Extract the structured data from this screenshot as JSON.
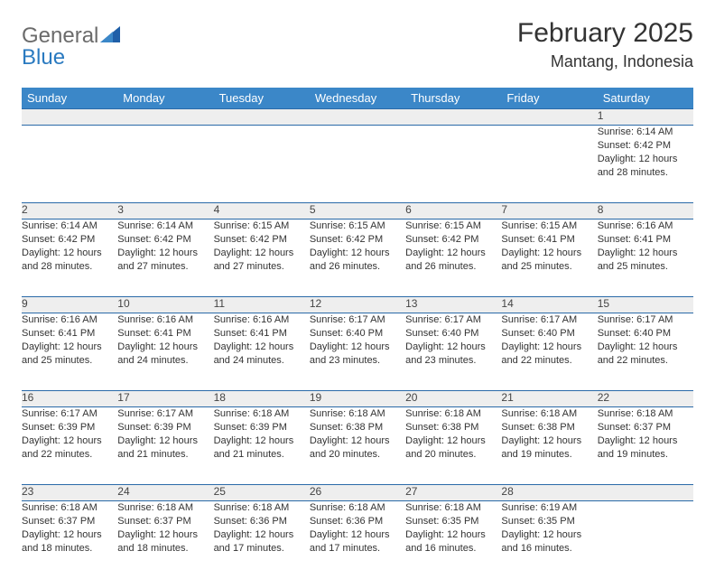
{
  "brand": {
    "text1": "General",
    "text2": "Blue"
  },
  "title": "February 2025",
  "location": "Mantang, Indonesia",
  "colors": {
    "header_bg": "#3b87c8",
    "header_text": "#ffffff",
    "row_border": "#2a6aa8",
    "daynum_bg": "#eeeeee",
    "text": "#333333",
    "logo_gray": "#6b6b6b",
    "logo_blue": "#2a7ac0",
    "page_bg": "#ffffff"
  },
  "typography": {
    "title_fontsize": 30,
    "location_fontsize": 18,
    "header_fontsize": 13,
    "daynum_fontsize": 12,
    "cell_fontsize": 11
  },
  "daysOfWeek": [
    "Sunday",
    "Monday",
    "Tuesday",
    "Wednesday",
    "Thursday",
    "Friday",
    "Saturday"
  ],
  "weeks": [
    [
      {
        "num": "",
        "sunrise": "",
        "sunset": "",
        "daylight": ""
      },
      {
        "num": "",
        "sunrise": "",
        "sunset": "",
        "daylight": ""
      },
      {
        "num": "",
        "sunrise": "",
        "sunset": "",
        "daylight": ""
      },
      {
        "num": "",
        "sunrise": "",
        "sunset": "",
        "daylight": ""
      },
      {
        "num": "",
        "sunrise": "",
        "sunset": "",
        "daylight": ""
      },
      {
        "num": "",
        "sunrise": "",
        "sunset": "",
        "daylight": ""
      },
      {
        "num": "1",
        "sunrise": "Sunrise: 6:14 AM",
        "sunset": "Sunset: 6:42 PM",
        "daylight": "Daylight: 12 hours and 28 minutes."
      }
    ],
    [
      {
        "num": "2",
        "sunrise": "Sunrise: 6:14 AM",
        "sunset": "Sunset: 6:42 PM",
        "daylight": "Daylight: 12 hours and 28 minutes."
      },
      {
        "num": "3",
        "sunrise": "Sunrise: 6:14 AM",
        "sunset": "Sunset: 6:42 PM",
        "daylight": "Daylight: 12 hours and 27 minutes."
      },
      {
        "num": "4",
        "sunrise": "Sunrise: 6:15 AM",
        "sunset": "Sunset: 6:42 PM",
        "daylight": "Daylight: 12 hours and 27 minutes."
      },
      {
        "num": "5",
        "sunrise": "Sunrise: 6:15 AM",
        "sunset": "Sunset: 6:42 PM",
        "daylight": "Daylight: 12 hours and 26 minutes."
      },
      {
        "num": "6",
        "sunrise": "Sunrise: 6:15 AM",
        "sunset": "Sunset: 6:42 PM",
        "daylight": "Daylight: 12 hours and 26 minutes."
      },
      {
        "num": "7",
        "sunrise": "Sunrise: 6:15 AM",
        "sunset": "Sunset: 6:41 PM",
        "daylight": "Daylight: 12 hours and 25 minutes."
      },
      {
        "num": "8",
        "sunrise": "Sunrise: 6:16 AM",
        "sunset": "Sunset: 6:41 PM",
        "daylight": "Daylight: 12 hours and 25 minutes."
      }
    ],
    [
      {
        "num": "9",
        "sunrise": "Sunrise: 6:16 AM",
        "sunset": "Sunset: 6:41 PM",
        "daylight": "Daylight: 12 hours and 25 minutes."
      },
      {
        "num": "10",
        "sunrise": "Sunrise: 6:16 AM",
        "sunset": "Sunset: 6:41 PM",
        "daylight": "Daylight: 12 hours and 24 minutes."
      },
      {
        "num": "11",
        "sunrise": "Sunrise: 6:16 AM",
        "sunset": "Sunset: 6:41 PM",
        "daylight": "Daylight: 12 hours and 24 minutes."
      },
      {
        "num": "12",
        "sunrise": "Sunrise: 6:17 AM",
        "sunset": "Sunset: 6:40 PM",
        "daylight": "Daylight: 12 hours and 23 minutes."
      },
      {
        "num": "13",
        "sunrise": "Sunrise: 6:17 AM",
        "sunset": "Sunset: 6:40 PM",
        "daylight": "Daylight: 12 hours and 23 minutes."
      },
      {
        "num": "14",
        "sunrise": "Sunrise: 6:17 AM",
        "sunset": "Sunset: 6:40 PM",
        "daylight": "Daylight: 12 hours and 22 minutes."
      },
      {
        "num": "15",
        "sunrise": "Sunrise: 6:17 AM",
        "sunset": "Sunset: 6:40 PM",
        "daylight": "Daylight: 12 hours and 22 minutes."
      }
    ],
    [
      {
        "num": "16",
        "sunrise": "Sunrise: 6:17 AM",
        "sunset": "Sunset: 6:39 PM",
        "daylight": "Daylight: 12 hours and 22 minutes."
      },
      {
        "num": "17",
        "sunrise": "Sunrise: 6:17 AM",
        "sunset": "Sunset: 6:39 PM",
        "daylight": "Daylight: 12 hours and 21 minutes."
      },
      {
        "num": "18",
        "sunrise": "Sunrise: 6:18 AM",
        "sunset": "Sunset: 6:39 PM",
        "daylight": "Daylight: 12 hours and 21 minutes."
      },
      {
        "num": "19",
        "sunrise": "Sunrise: 6:18 AM",
        "sunset": "Sunset: 6:38 PM",
        "daylight": "Daylight: 12 hours and 20 minutes."
      },
      {
        "num": "20",
        "sunrise": "Sunrise: 6:18 AM",
        "sunset": "Sunset: 6:38 PM",
        "daylight": "Daylight: 12 hours and 20 minutes."
      },
      {
        "num": "21",
        "sunrise": "Sunrise: 6:18 AM",
        "sunset": "Sunset: 6:38 PM",
        "daylight": "Daylight: 12 hours and 19 minutes."
      },
      {
        "num": "22",
        "sunrise": "Sunrise: 6:18 AM",
        "sunset": "Sunset: 6:37 PM",
        "daylight": "Daylight: 12 hours and 19 minutes."
      }
    ],
    [
      {
        "num": "23",
        "sunrise": "Sunrise: 6:18 AM",
        "sunset": "Sunset: 6:37 PM",
        "daylight": "Daylight: 12 hours and 18 minutes."
      },
      {
        "num": "24",
        "sunrise": "Sunrise: 6:18 AM",
        "sunset": "Sunset: 6:37 PM",
        "daylight": "Daylight: 12 hours and 18 minutes."
      },
      {
        "num": "25",
        "sunrise": "Sunrise: 6:18 AM",
        "sunset": "Sunset: 6:36 PM",
        "daylight": "Daylight: 12 hours and 17 minutes."
      },
      {
        "num": "26",
        "sunrise": "Sunrise: 6:18 AM",
        "sunset": "Sunset: 6:36 PM",
        "daylight": "Daylight: 12 hours and 17 minutes."
      },
      {
        "num": "27",
        "sunrise": "Sunrise: 6:18 AM",
        "sunset": "Sunset: 6:35 PM",
        "daylight": "Daylight: 12 hours and 16 minutes."
      },
      {
        "num": "28",
        "sunrise": "Sunrise: 6:19 AM",
        "sunset": "Sunset: 6:35 PM",
        "daylight": "Daylight: 12 hours and 16 minutes."
      },
      {
        "num": "",
        "sunrise": "",
        "sunset": "",
        "daylight": ""
      }
    ]
  ]
}
